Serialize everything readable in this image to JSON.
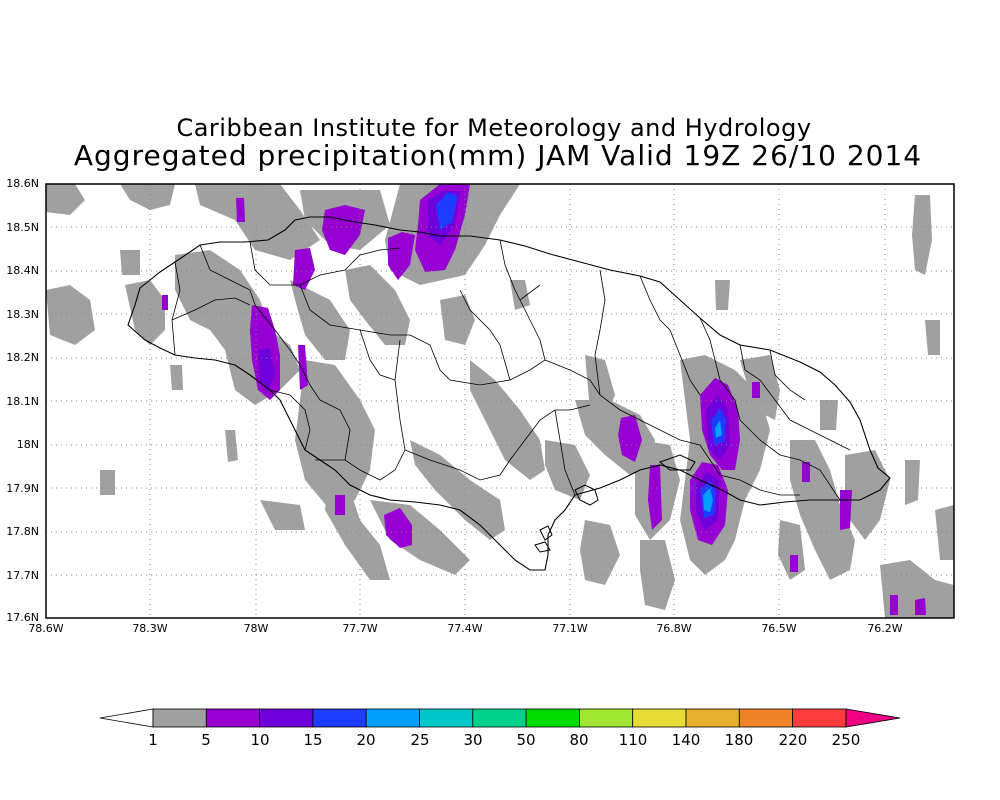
{
  "title_line1": "Caribbean Institute for Meteorology and Hydrology",
  "title_line2": "Aggregated precipitation(mm) JAM Valid 19Z 26/10 2014",
  "map": {
    "lon_range": [
      -78.6,
      -76.05
    ],
    "lat_range": [
      17.6,
      18.6
    ],
    "lat_ticks": [
      "17.6N",
      "17.7N",
      "17.8N",
      "17.9N",
      "18N",
      "18.1N",
      "18.2N",
      "18.3N",
      "18.4N",
      "18.5N",
      "18.6N"
    ],
    "lon_ticks": [
      "78.6W",
      "78.3W",
      "78W",
      "77.7W",
      "77.4W",
      "77.1W",
      "76.8W",
      "76.5W",
      "76.2W"
    ],
    "gridlines": true
  },
  "colorbar": {
    "labels": [
      "1",
      "5",
      "10",
      "15",
      "20",
      "25",
      "30",
      "50",
      "80",
      "110",
      "140",
      "180",
      "220",
      "250"
    ],
    "colors": [
      "#a0a0a0",
      "#9600d2",
      "#6e00dc",
      "#1e3cff",
      "#00a0ff",
      "#00c8c8",
      "#00d28c",
      "#00dc00",
      "#a0e632",
      "#e6dc32",
      "#e6af2d",
      "#f08228",
      "#fa3c3c",
      "#f00082"
    ]
  }
}
